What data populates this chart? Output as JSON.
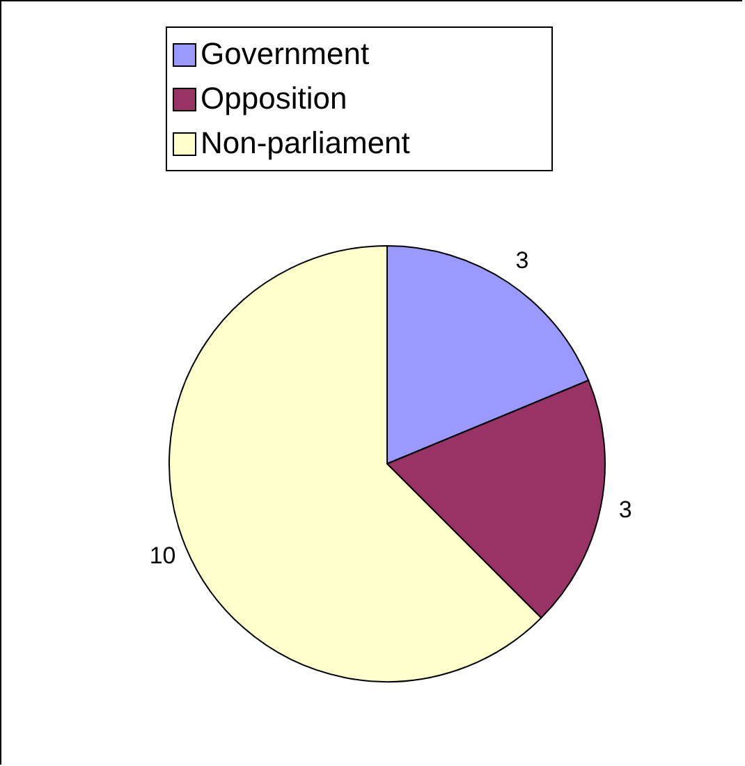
{
  "chart_data": {
    "type": "pie",
    "categories": [
      "Government",
      "Opposition",
      "Non-parliament"
    ],
    "values": [
      3,
      3,
      10
    ],
    "colors": [
      "#9999ff",
      "#993366",
      "#ffffcc"
    ],
    "data_labels": true,
    "legend": "top"
  }
}
